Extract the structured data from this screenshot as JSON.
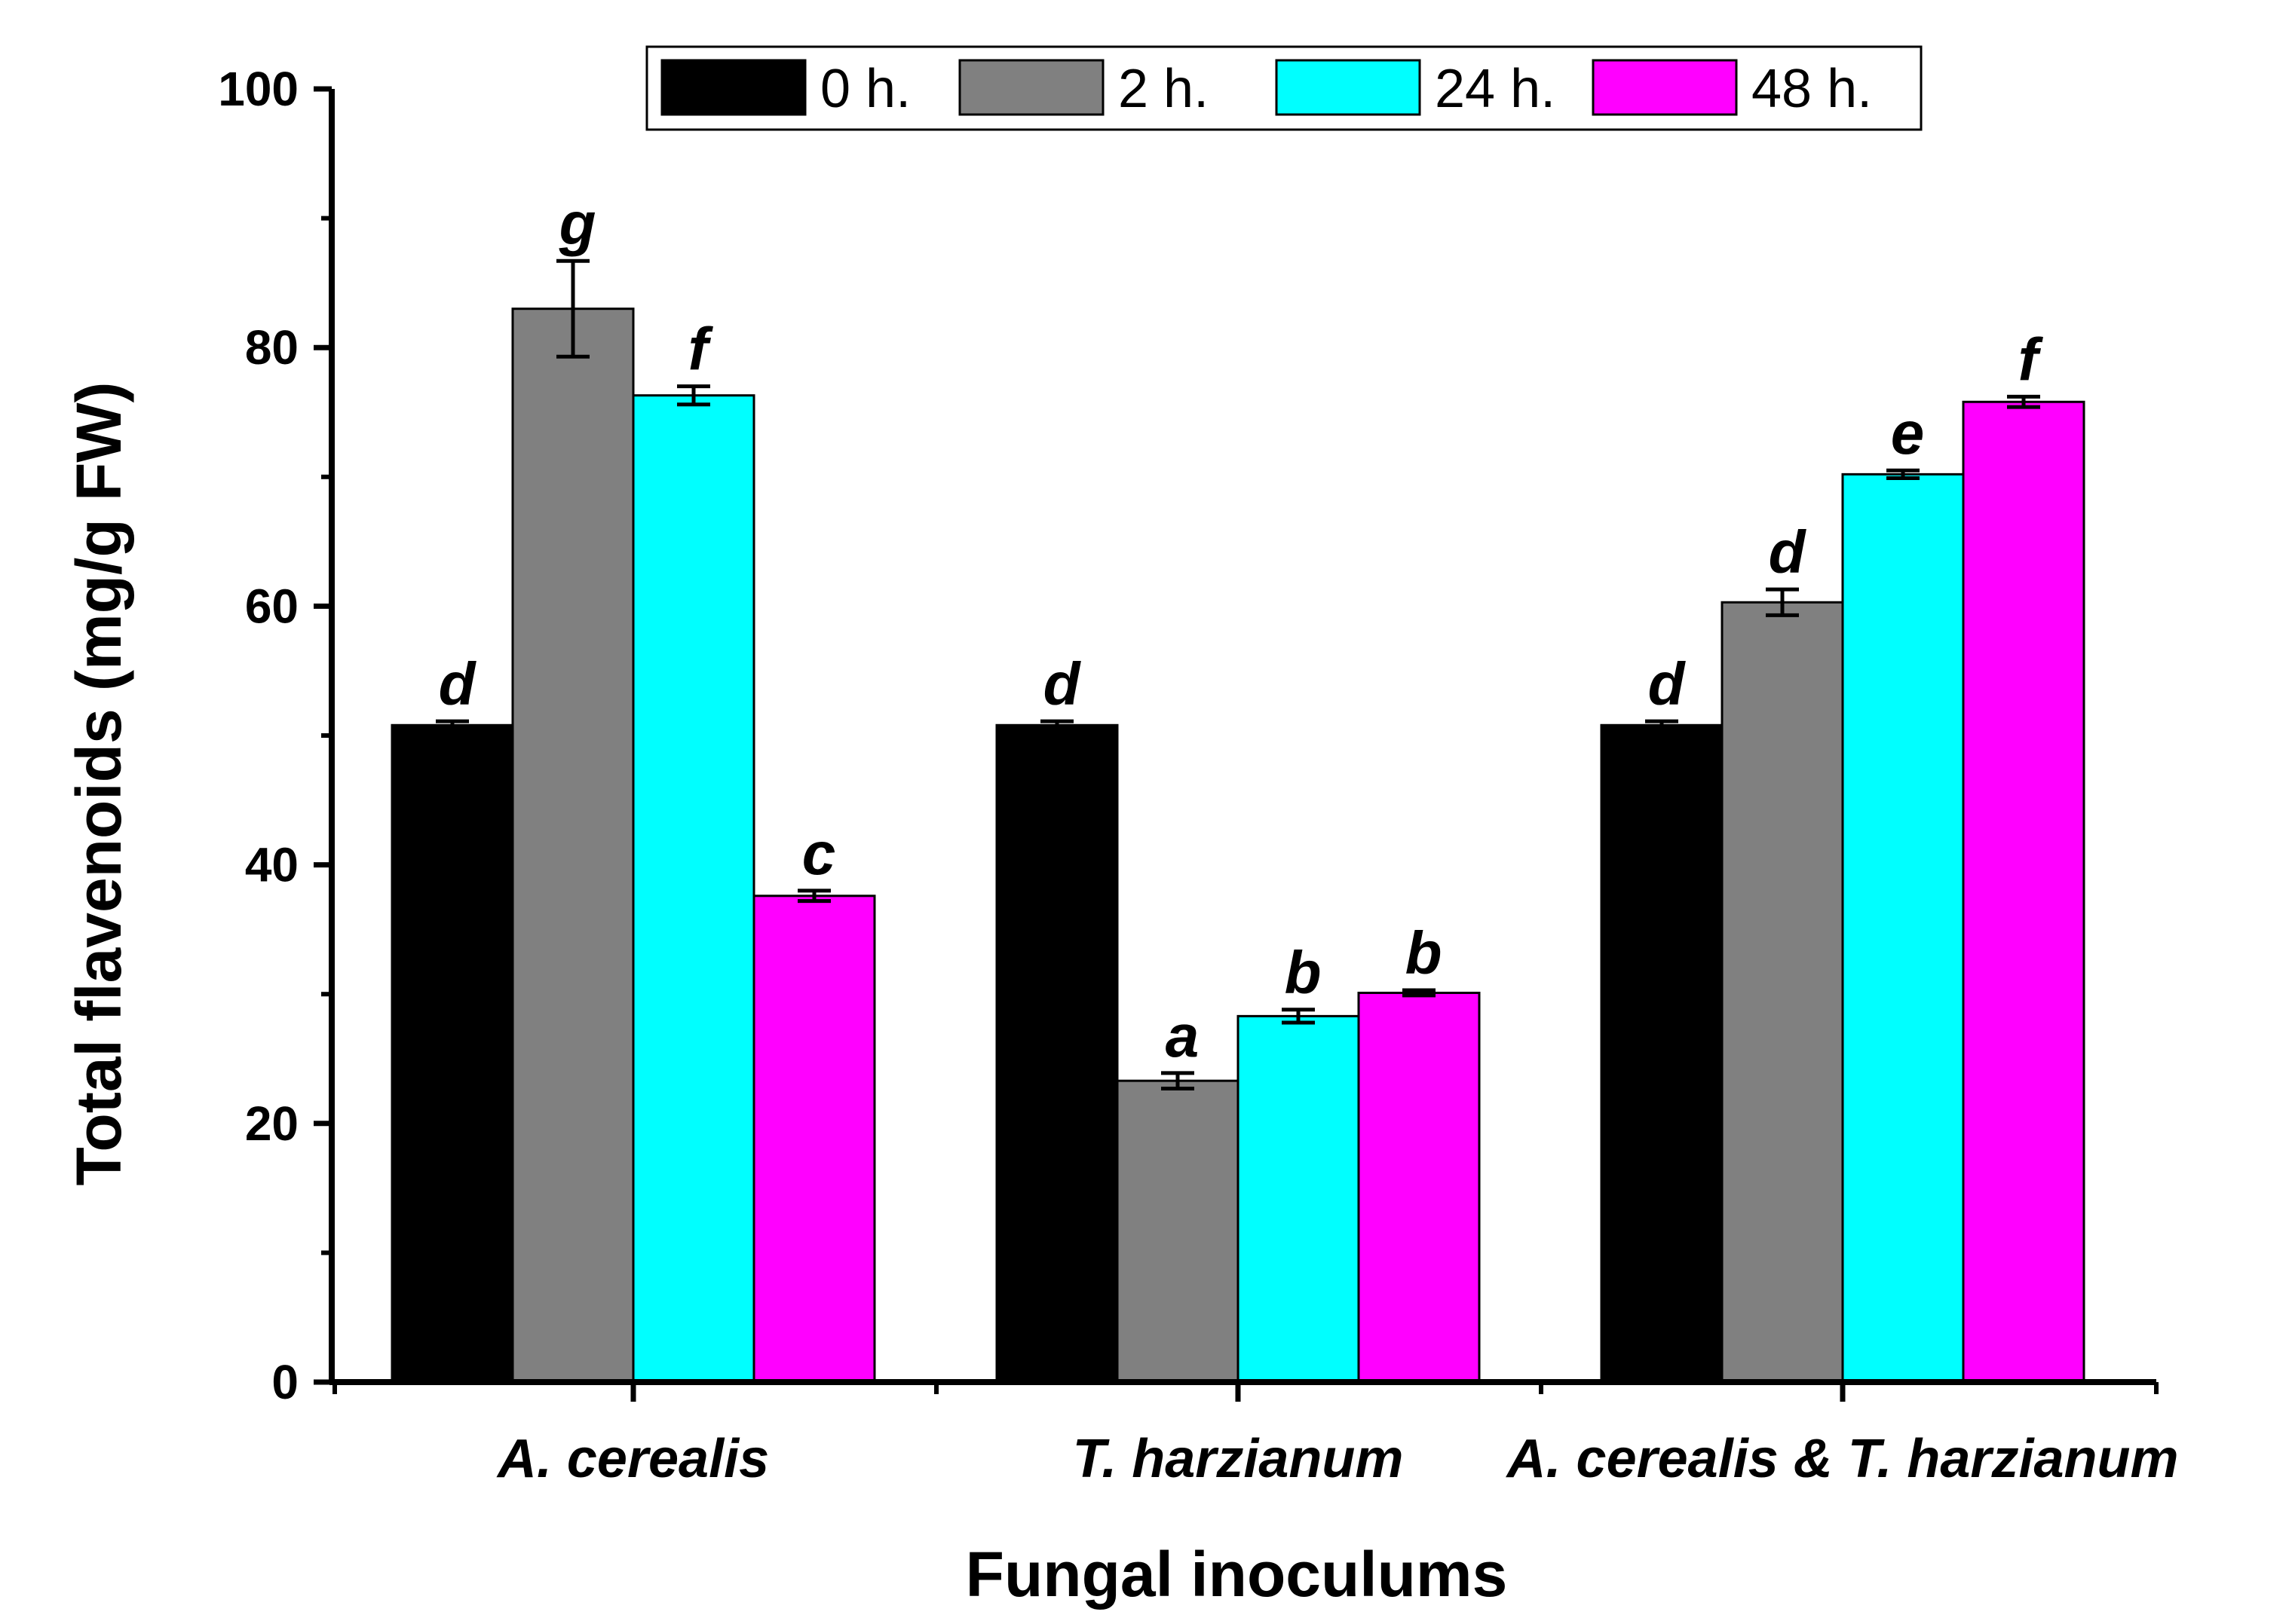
{
  "chart_data": {
    "type": "bar",
    "xlabel": "Fungal inoculums",
    "ylabel": "Total flavenoids (mg/g FW)",
    "ylim": [
      0,
      100
    ],
    "yticks": [
      0,
      20,
      40,
      60,
      80,
      100
    ],
    "y_tick_labels": [
      "0",
      "20",
      "40",
      "60",
      "80",
      "100"
    ],
    "legend_position": "top",
    "categories": [
      "A. cerealis",
      "T. harzianum",
      "A. cerealis & T. harzianum"
    ],
    "series": [
      {
        "name": "0 h.",
        "color": "#000000",
        "values": [
          50.8,
          50.8,
          50.8
        ],
        "errors": [
          0.3,
          0.3,
          0.3
        ],
        "letters": [
          "d",
          "d",
          "d"
        ]
      },
      {
        "name": "2 h.",
        "color": "#808080",
        "values": [
          83.0,
          23.3,
          60.3
        ],
        "errors": [
          3.7,
          0.6,
          1.0
        ],
        "letters": [
          "g",
          "a",
          "d"
        ]
      },
      {
        "name": "24 h.",
        "color": "#00FFFF",
        "values": [
          76.3,
          28.3,
          70.2
        ],
        "errors": [
          0.7,
          0.5,
          0.3
        ],
        "letters": [
          "f",
          "b",
          "e"
        ]
      },
      {
        "name": "48 h.",
        "color": "#FF00FF",
        "values": [
          37.6,
          30.1,
          75.8
        ],
        "errors": [
          0.4,
          0.2,
          0.4
        ],
        "letters": [
          "c",
          "b",
          "f"
        ]
      }
    ]
  }
}
